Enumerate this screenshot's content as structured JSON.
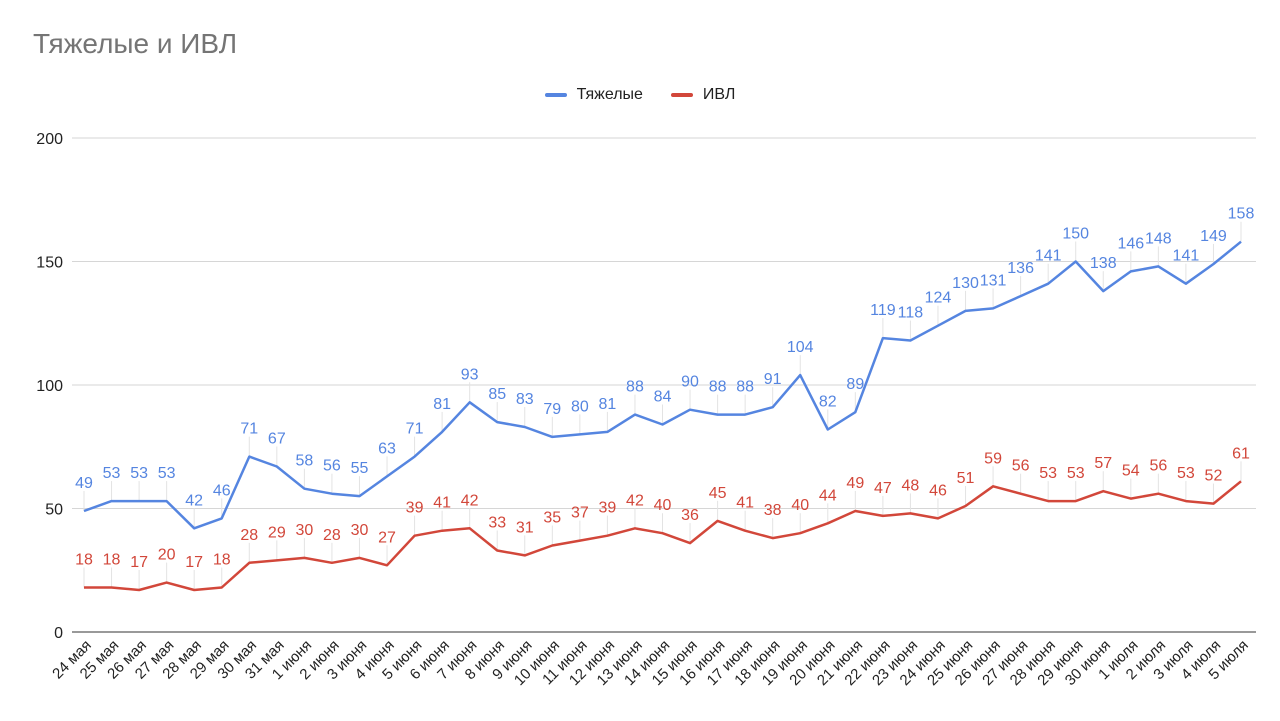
{
  "chart_data": {
    "type": "line",
    "title": "Тяжелые и ИВЛ",
    "legend_position": "top-center",
    "grid": true,
    "ylim": [
      0,
      200
    ],
    "yticks": [
      0,
      50,
      100,
      150,
      200
    ],
    "categories": [
      "24 мая",
      "25 мая",
      "26 мая",
      "27 мая",
      "28 мая",
      "29 мая",
      "30 мая",
      "31 мая",
      "1 июня",
      "2 июня",
      "3 июня",
      "4 июня",
      "5 июня",
      "6 июня",
      "7 июня",
      "8 июня",
      "9 июня",
      "10 июня",
      "11 июня",
      "12 июня",
      "13 июня",
      "14 июня",
      "15 июня",
      "16 июня",
      "17 июня",
      "18 июня",
      "19 июня",
      "20 июня",
      "21 июня",
      "22 июня",
      "23 июня",
      "24 июня",
      "25 июня",
      "26 июня",
      "27 июня",
      "28 июня",
      "29 июня",
      "30 июня",
      "1 июля",
      "2 июля",
      "3 июля",
      "4 июля",
      "5 июля"
    ],
    "series": [
      {
        "name": "Тяжелые",
        "color": "#5585e0",
        "values": [
          49,
          53,
          53,
          53,
          42,
          46,
          71,
          67,
          58,
          56,
          55,
          63,
          71,
          81,
          93,
          85,
          83,
          79,
          80,
          81,
          88,
          84,
          90,
          88,
          88,
          91,
          104,
          82,
          89,
          119,
          118,
          124,
          130,
          131,
          136,
          141,
          150,
          138,
          146,
          148,
          141,
          149,
          158
        ]
      },
      {
        "name": "ИВЛ",
        "color": "#d2473a",
        "values": [
          18,
          18,
          17,
          20,
          17,
          18,
          28,
          29,
          30,
          28,
          30,
          27,
          39,
          41,
          42,
          33,
          31,
          35,
          37,
          39,
          42,
          40,
          36,
          45,
          41,
          38,
          40,
          44,
          49,
          47,
          48,
          46,
          51,
          59,
          56,
          53,
          53,
          57,
          54,
          56,
          53,
          52,
          61
        ]
      }
    ]
  }
}
